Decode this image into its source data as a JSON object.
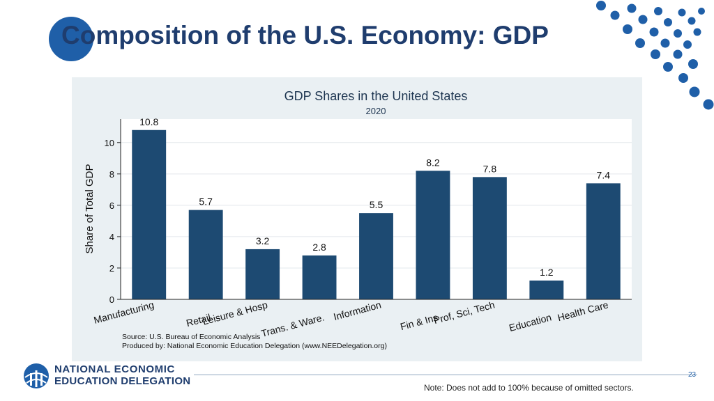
{
  "slide": {
    "title": "Composition of the U.S. Economy: GDP",
    "page_number": "23",
    "note": "Note: Does not add to 100% because of omitted sectors."
  },
  "logo": {
    "line1": "NATIONAL ECONOMIC",
    "line2": "EDUCATION DELEGATION"
  },
  "colors": {
    "bar": "#1d4a72",
    "accent": "#1f5fa8",
    "title": "#1f3d6e",
    "panel": "#eaf0f3"
  },
  "chart_data": {
    "type": "bar",
    "title": "GDP Shares in the United States",
    "subtitle": "2020",
    "xlabel": "",
    "ylabel": "Share of Total GDP",
    "ylim": [
      0,
      11.5
    ],
    "yticks": [
      0,
      2,
      4,
      6,
      8,
      10
    ],
    "grid": true,
    "categories": [
      "Manufacturing",
      "Retail",
      "Leisure & Hosp",
      "Trans. & Ware.",
      "Information",
      "Fin & Ins",
      "Prof, Sci, Tech",
      "Education",
      "Health Care"
    ],
    "values": [
      10.8,
      5.7,
      3.2,
      2.8,
      5.5,
      8.2,
      7.8,
      1.2,
      7.4
    ],
    "value_labels": [
      "10.8",
      "5.7",
      "3.2",
      "2.8",
      "5.5",
      "8.2",
      "7.8",
      "1.2",
      "7.4"
    ],
    "source_lines": [
      "Source: U.S. Bureau of Economic Analysis",
      "Produced by: National Economic Education Delegation (www.NEEDelegation.org)"
    ]
  }
}
